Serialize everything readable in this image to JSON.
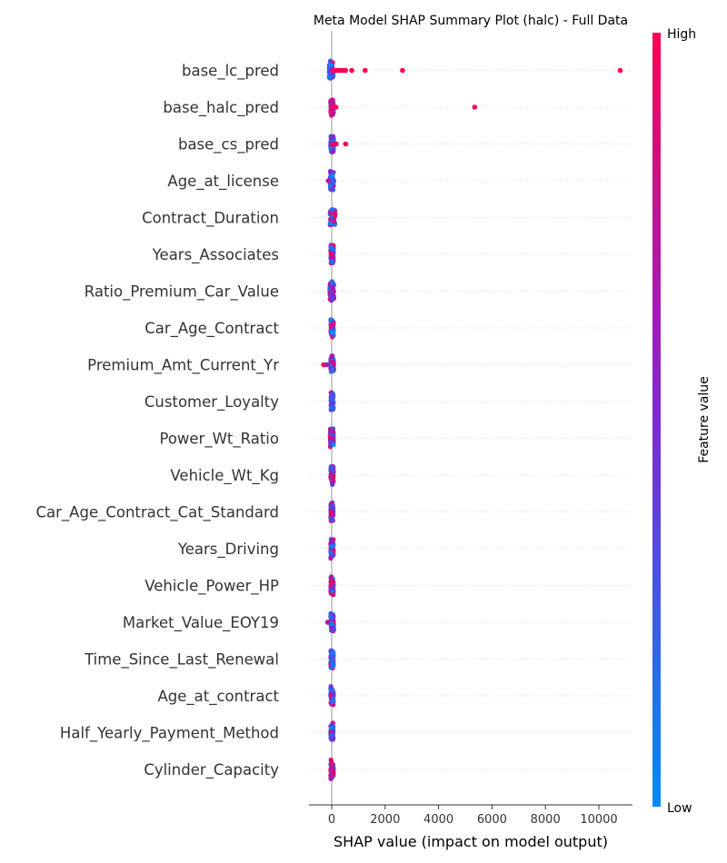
{
  "chart_data": {
    "type": "scatter",
    "variant": "shap-beeswarm-summary",
    "title": "Meta Model SHAP Summary Plot (halc) - Full Data",
    "xlabel": "SHAP value (impact on model output)",
    "xlim": [
      -850,
      11300
    ],
    "xticks": [
      0,
      2000,
      4000,
      6000,
      8000,
      10000
    ],
    "colorbar": {
      "label": "Feature value",
      "high_label": "High",
      "low_label": "Low",
      "high_color": "#ff0052",
      "mid_color": "#7d28d8",
      "low_color": "#008bfb"
    },
    "grid": "dotted horizontal row guides",
    "features": [
      {
        "name": "base_lc_pred",
        "core": [
          -100,
          60
        ],
        "color_mix": "low",
        "points": [
          [
            30,
            0.92
          ],
          [
            110,
            0.95
          ],
          [
            200,
            0.97
          ],
          [
            280,
            1
          ],
          [
            360,
            1
          ],
          [
            450,
            1
          ],
          [
            520,
            1
          ],
          [
            750,
            1
          ],
          [
            1250,
            1
          ],
          [
            2650,
            1
          ],
          [
            10800,
            1
          ]
        ]
      },
      {
        "name": "base_halc_pred",
        "core": [
          -40,
          70
        ],
        "color_mix": "mixed-pink",
        "points": [
          [
            120,
            1
          ],
          [
            160,
            1
          ],
          [
            5350,
            1
          ]
        ]
      },
      {
        "name": "base_cs_pred",
        "core": [
          -40,
          80
        ],
        "color_mix": "low",
        "points": [
          [
            50,
            1
          ],
          [
            90,
            1
          ],
          [
            130,
            0.95
          ],
          [
            170,
            0.9
          ],
          [
            520,
            1
          ]
        ]
      },
      {
        "name": "Age_at_license",
        "core": [
          -60,
          80
        ],
        "color_mix": "low",
        "points": [
          [
            -130,
            0.75
          ]
        ]
      },
      {
        "name": "Contract_Duration",
        "core": [
          -60,
          130
        ],
        "color_mix": "mixed-low",
        "points": []
      },
      {
        "name": "Years_Associates",
        "core": [
          -40,
          70
        ],
        "color_mix": "mixed",
        "points": []
      },
      {
        "name": "Ratio_Premium_Car_Value",
        "core": [
          -80,
          90
        ],
        "color_mix": "mixed",
        "points": []
      },
      {
        "name": "Car_Age_Contract",
        "core": [
          -40,
          70
        ],
        "color_mix": "mixed",
        "points": []
      },
      {
        "name": "Premium_Amt_Current_Yr",
        "core": [
          -40,
          80
        ],
        "color_mix": "mixed",
        "points": [
          [
            -300,
            1
          ],
          [
            -180,
            0.6
          ]
        ]
      },
      {
        "name": "Customer_Loyalty",
        "core": [
          -30,
          60
        ],
        "color_mix": "low",
        "points": []
      },
      {
        "name": "Power_Wt_Ratio",
        "core": [
          -60,
          70
        ],
        "color_mix": "mixed",
        "points": []
      },
      {
        "name": "Vehicle_Wt_Kg",
        "core": [
          -40,
          70
        ],
        "color_mix": "mixed",
        "points": []
      },
      {
        "name": "Car_Age_Contract_Cat_Standard",
        "core": [
          -40,
          60
        ],
        "color_mix": "mixed-low",
        "points": []
      },
      {
        "name": "Years_Driving",
        "core": [
          -40,
          70
        ],
        "color_mix": "mixed",
        "points": []
      },
      {
        "name": "Vehicle_Power_HP",
        "core": [
          -40,
          70
        ],
        "color_mix": "mixed",
        "points": []
      },
      {
        "name": "Market_Value_EOY19",
        "core": [
          -40,
          80
        ],
        "color_mix": "mixed",
        "points": [
          [
            -150,
            0.7
          ]
        ]
      },
      {
        "name": "Time_Since_Last_Renewal",
        "core": [
          -40,
          70
        ],
        "color_mix": "low",
        "points": []
      },
      {
        "name": "Age_at_contract",
        "core": [
          -40,
          70
        ],
        "color_mix": "mixed",
        "points": []
      },
      {
        "name": "Half_Yearly_Payment_Method",
        "core": [
          -40,
          60
        ],
        "color_mix": "mixed-low",
        "points": []
      },
      {
        "name": "Cylinder_Capacity",
        "core": [
          -40,
          70
        ],
        "color_mix": "high",
        "points": []
      }
    ]
  }
}
